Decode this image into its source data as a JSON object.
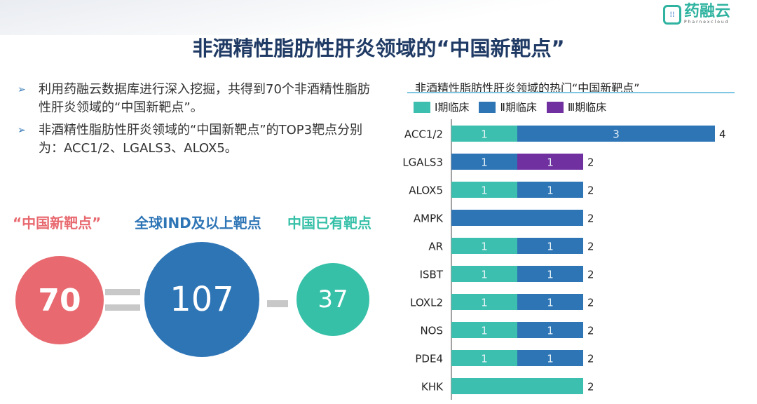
{
  "logo": {
    "text": "药融云",
    "sub": "Pharnexcloud"
  },
  "title": "非酒精性脂肪性肝炎领域的“中国新靶点”",
  "bullets": [
    "利用药融云数据库进行深入挖掘，共得到70个非酒精性脂肪性肝炎领域的“中国新靶点”。",
    "非酒精性脂肪性肝炎领域的“中国新靶点”的TOP3靶点分别为：ACC1/2、LGALS3、ALOX5。"
  ],
  "equation": {
    "labels": [
      "“中国新靶点”",
      "全球IND及以上靶点",
      "中国已有靶点"
    ],
    "values": [
      "70",
      "107",
      "37"
    ],
    "colors": [
      "#e8696f",
      "#2e75b6",
      "#36c0a8"
    ]
  },
  "chart_data": {
    "type": "bar",
    "orientation": "horizontal",
    "stacked": true,
    "title": "非酒精性脂肪性肝炎领域的热门“中国新靶点”",
    "categories": [
      "ACC1/2",
      "LGALS3",
      "ALOX5",
      "AMPK",
      "AR",
      "ISBT",
      "LOXL2",
      "NOS",
      "PDE4",
      "KHK"
    ],
    "series": [
      {
        "name": "Ⅰ期临床",
        "color": "#3cbfae",
        "values": [
          1,
          0,
          1,
          0,
          1,
          1,
          1,
          1,
          1,
          2
        ]
      },
      {
        "name": "Ⅱ期临床",
        "color": "#2e75b6",
        "values": [
          3,
          1,
          1,
          2,
          1,
          1,
          1,
          1,
          1,
          0
        ]
      },
      {
        "name": "Ⅲ期临床",
        "color": "#7030a0",
        "values": [
          0,
          1,
          0,
          0,
          0,
          0,
          0,
          0,
          0,
          0
        ]
      }
    ],
    "totals": [
      4,
      2,
      2,
      2,
      2,
      2,
      2,
      2,
      2,
      2
    ],
    "segment_labels_shown": [
      [
        true,
        true,
        false
      ],
      [
        false,
        true,
        true
      ],
      [
        true,
        true,
        false
      ],
      [
        false,
        false,
        false
      ],
      [
        true,
        true,
        false
      ],
      [
        true,
        true,
        false
      ],
      [
        true,
        true,
        false
      ],
      [
        true,
        true,
        false
      ],
      [
        true,
        true,
        false
      ],
      [
        false,
        false,
        false
      ]
    ],
    "legend": "top-left",
    "grid": false
  }
}
